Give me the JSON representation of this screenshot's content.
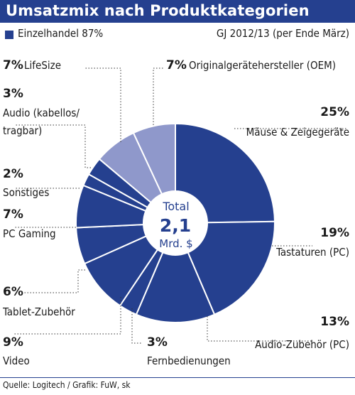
{
  "title": "Umsatzmix nach Produktkategorien",
  "legend": {
    "label": "Einzelhandel 87%",
    "color": "#25408f"
  },
  "fiscal_year": "GJ 2012/13 (per Ende März)",
  "source": "Quelle: Logitech / Grafik: FuW, sk",
  "colors": {
    "retail": "#25408f",
    "oem": "#8f98cb",
    "background": "#ffffff"
  },
  "chart_data": {
    "type": "pie",
    "style": "donut",
    "center": {
      "label": "Total",
      "value": "2,1",
      "unit": "Mrd. $"
    },
    "slices": [
      {
        "pct_label": "25%",
        "name": "Mäuse & Zeigegeräte",
        "value": 25,
        "group": "retail"
      },
      {
        "pct_label": "19%",
        "name": "Tastaturen (PC)",
        "value": 19,
        "group": "retail"
      },
      {
        "pct_label": "13%",
        "name": "Audio-Zubehör (PC)",
        "value": 13,
        "group": "retail"
      },
      {
        "pct_label": "3%",
        "name": "Fernbedienungen",
        "value": 3,
        "group": "retail"
      },
      {
        "pct_label": "9%",
        "name": "Video",
        "value": 9,
        "group": "retail"
      },
      {
        "pct_label": "6%",
        "name": "Tablet-Zubehör",
        "value": 6,
        "group": "retail"
      },
      {
        "pct_label": "7%",
        "name": "PC Gaming",
        "value": 7,
        "group": "retail"
      },
      {
        "pct_label": "2%",
        "name": "Sonstiges",
        "value": 2,
        "group": "retail"
      },
      {
        "pct_label": "3%",
        "name": "Audio (kabellos/ tragbar)",
        "value": 3,
        "group": "retail"
      },
      {
        "pct_label": "7%",
        "name": "LifeSize",
        "value": 7,
        "group": "other"
      },
      {
        "pct_label": "7%",
        "name": "Originalgerätehersteller (OEM)",
        "value": 7,
        "group": "other"
      }
    ]
  }
}
